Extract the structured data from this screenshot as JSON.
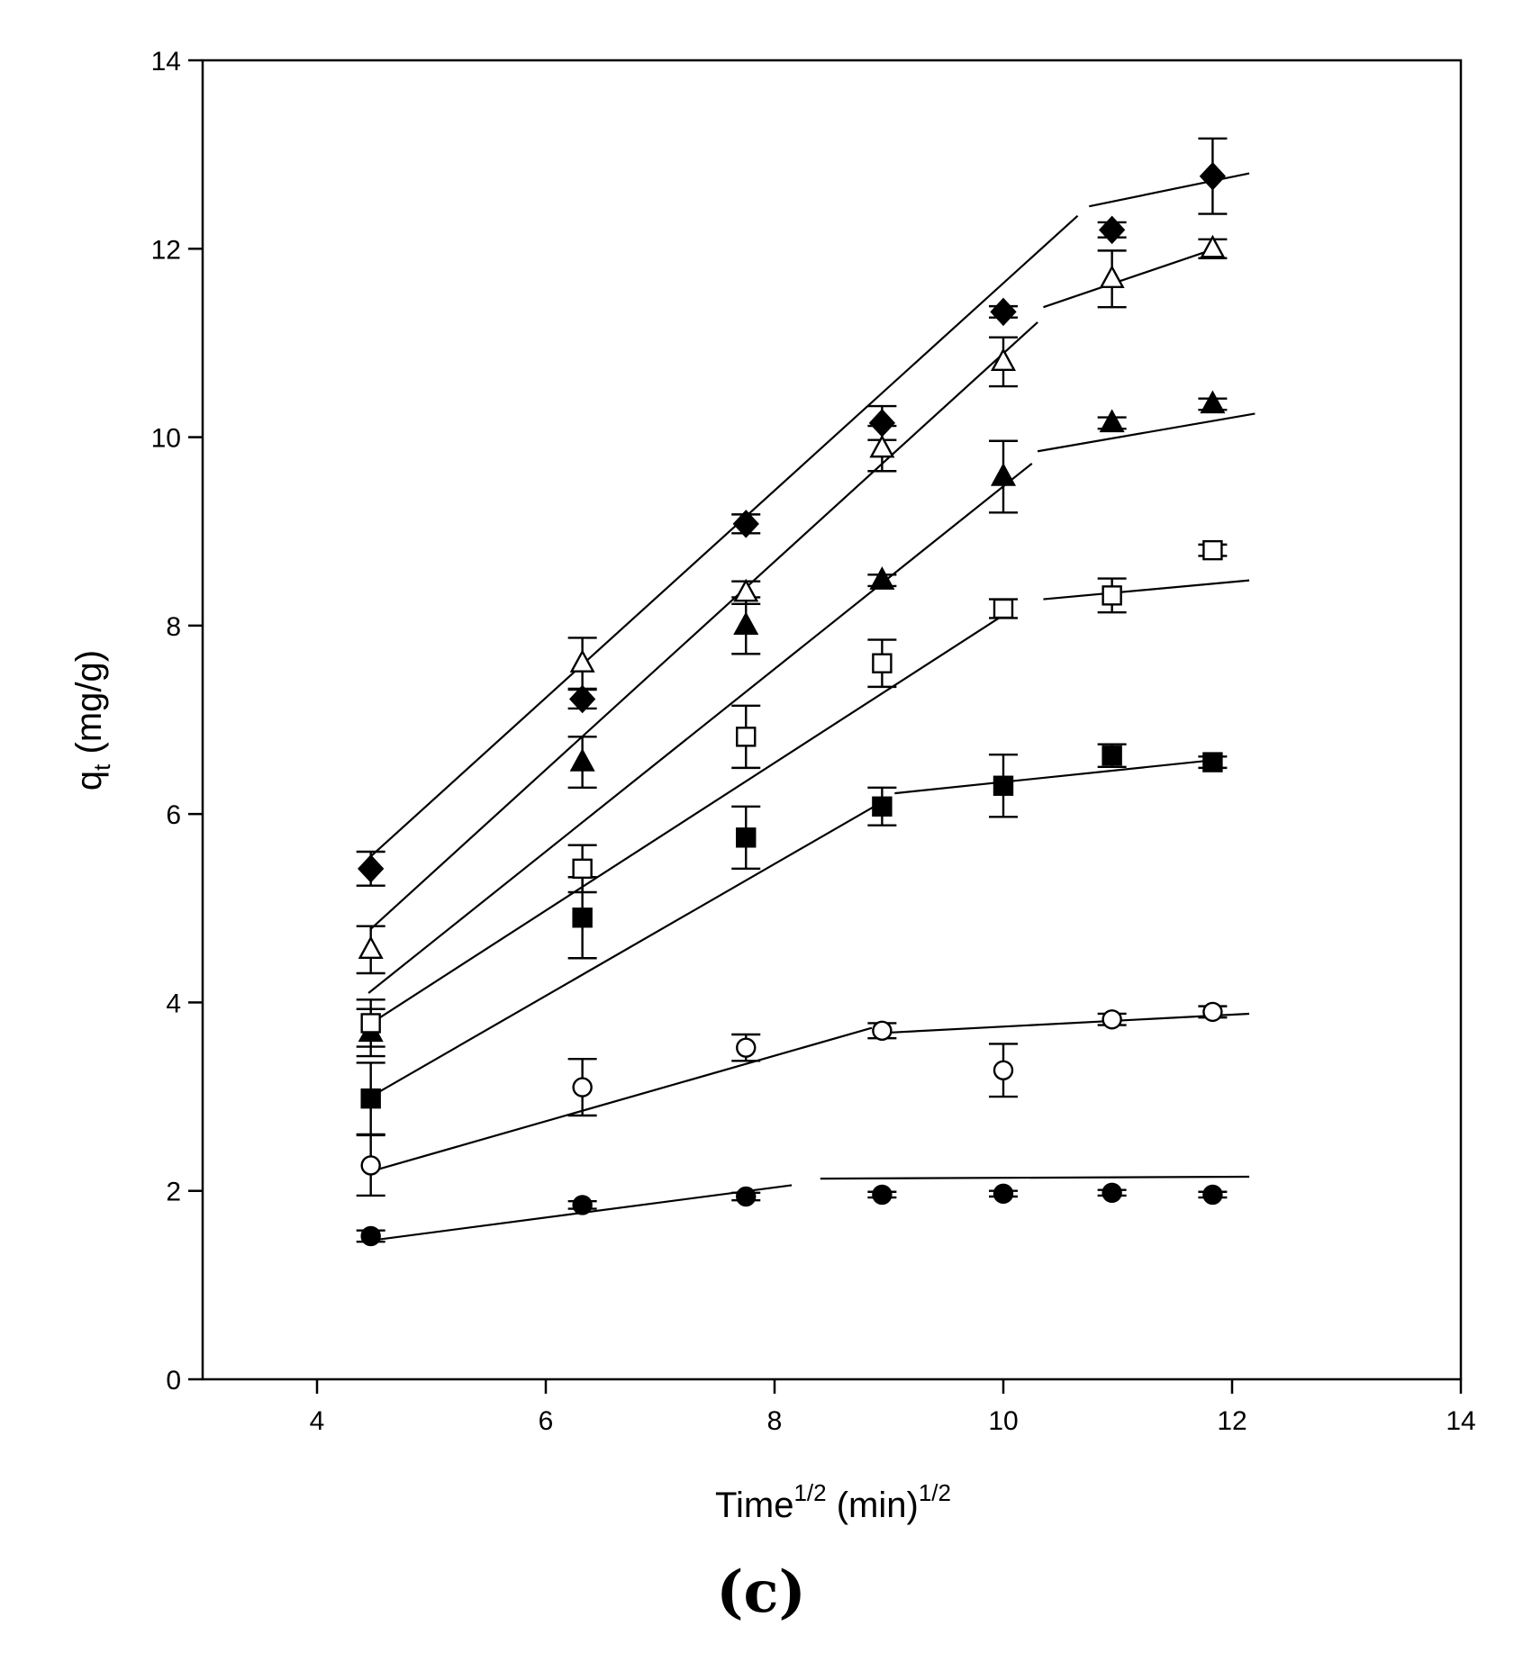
{
  "chart_data": {
    "type": "scatter",
    "title": "",
    "panel_label": "(c)",
    "xlabel": {
      "base": "Time",
      "sup1": "1/2",
      "mid": " (min)",
      "sup2": "1/2"
    },
    "ylabel": {
      "base": "q",
      "sub": "t",
      "rest": " (mg/g)"
    },
    "xlim": [
      3,
      14
    ],
    "ylim": [
      0,
      14
    ],
    "xticks": [
      4,
      6,
      8,
      10,
      12,
      14
    ],
    "yticks": [
      0,
      2,
      4,
      6,
      8,
      10,
      12,
      14
    ],
    "grid": false,
    "legend": "none",
    "x": [
      4.47,
      6.32,
      7.75,
      8.94,
      10.0,
      10.95,
      11.83
    ],
    "series": [
      {
        "name": "filled diamond",
        "marker": "diamond",
        "filled": true,
        "values": [
          5.42,
          7.22,
          9.08,
          10.15,
          11.33,
          12.2,
          12.77
        ],
        "errors": [
          0.18,
          0.1,
          0.1,
          0.18,
          0.06,
          0.08,
          0.4
        ],
        "fits": [
          {
            "x": [
              4.47,
              10.65
            ],
            "y": [
              5.55,
              12.35
            ]
          },
          {
            "x": [
              10.75,
              12.15
            ],
            "y": [
              12.45,
              12.8
            ]
          }
        ]
      },
      {
        "name": "open triangle",
        "marker": "triangle",
        "filled": false,
        "values": [
          4.56,
          7.6,
          8.35,
          9.88,
          10.8,
          11.68,
          12.0
        ],
        "errors": [
          0.25,
          0.27,
          0.12,
          0.24,
          0.26,
          0.3,
          0.1
        ],
        "fits": [
          {
            "x": [
              4.47,
              10.3
            ],
            "y": [
              4.78,
              11.22
            ]
          },
          {
            "x": [
              10.35,
              11.85
            ],
            "y": [
              11.38,
              12.0
            ]
          }
        ]
      },
      {
        "name": "filled triangle",
        "marker": "triangle",
        "filled": true,
        "values": [
          3.68,
          6.55,
          8.0,
          8.48,
          9.58,
          10.15,
          10.35
        ],
        "errors": [
          0.25,
          0.27,
          0.3,
          0.06,
          0.38,
          0.06,
          0.06
        ],
        "fits": [
          {
            "x": [
              4.45,
              10.25
            ],
            "y": [
              4.1,
              9.72
            ]
          },
          {
            "x": [
              10.3,
              12.2
            ],
            "y": [
              9.85,
              10.25
            ]
          }
        ]
      },
      {
        "name": "open square",
        "marker": "square",
        "filled": false,
        "values": [
          3.78,
          5.42,
          6.82,
          7.6,
          8.18,
          8.32,
          8.8
        ],
        "errors": [
          0.25,
          0.25,
          0.33,
          0.25,
          0.1,
          0.18,
          0.06
        ],
        "fits": [
          {
            "x": [
              4.5,
              10.05
            ],
            "y": [
              3.8,
              8.15
            ]
          },
          {
            "x": [
              10.35,
              12.15
            ],
            "y": [
              8.28,
              8.48
            ]
          }
        ]
      },
      {
        "name": "filled square",
        "marker": "square",
        "filled": true,
        "values": [
          2.98,
          4.9,
          5.75,
          6.08,
          6.3,
          6.62,
          6.55
        ],
        "errors": [
          0.38,
          0.43,
          0.33,
          0.2,
          0.33,
          0.12,
          0.06
        ],
        "fits": [
          {
            "x": [
              4.47,
              8.9
            ],
            "y": [
              3.0,
              6.1
            ]
          },
          {
            "x": [
              9.05,
              11.9
            ],
            "y": [
              6.22,
              6.58
            ]
          }
        ]
      },
      {
        "name": "open circle",
        "marker": "circle",
        "filled": false,
        "values": [
          2.27,
          3.1,
          3.52,
          3.7,
          3.28,
          3.82,
          3.9
        ],
        "errors": [
          0.32,
          0.3,
          0.14,
          0.08,
          0.28,
          0.06,
          0.06
        ],
        "fits": [
          {
            "x": [
              4.45,
              8.85
            ],
            "y": [
              2.2,
              3.73
            ]
          },
          {
            "x": [
              9.0,
              12.15
            ],
            "y": [
              3.68,
              3.88
            ]
          }
        ]
      },
      {
        "name": "filled circle",
        "marker": "circle",
        "filled": true,
        "values": [
          1.52,
          1.85,
          1.94,
          1.96,
          1.97,
          1.98,
          1.96
        ],
        "errors": [
          0.06,
          0.04,
          0.04,
          0.03,
          0.03,
          0.03,
          0.03
        ],
        "fits": [
          {
            "x": [
              4.45,
              8.15
            ],
            "y": [
              1.47,
              2.06
            ]
          },
          {
            "x": [
              8.4,
              12.15
            ],
            "y": [
              2.13,
              2.15
            ]
          }
        ]
      }
    ]
  }
}
